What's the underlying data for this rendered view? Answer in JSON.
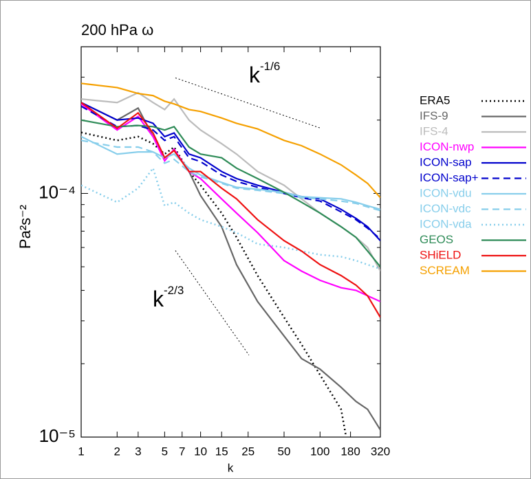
{
  "chart_data": {
    "type": "line",
    "title": "200 hPa ω",
    "xlabel": "k",
    "ylabel": "Pa²s⁻²",
    "xscale": "log",
    "yscale": "log",
    "xlim": [
      1,
      320
    ],
    "ylim": [
      1e-05,
      0.0004
    ],
    "xticks": [
      1,
      2,
      3,
      5,
      7,
      10,
      15,
      25,
      50,
      100,
      180,
      320
    ],
    "yticks": [
      {
        "value": 1e-05,
        "label": "10⁻⁵"
      },
      {
        "value": 0.0001,
        "label": "10⁻⁴"
      }
    ],
    "yminorticks": [
      2e-05,
      3e-05,
      4e-05,
      5e-05,
      6e-05,
      7e-05,
      8e-05,
      9e-05,
      0.0002,
      0.0003,
      0.0004
    ],
    "annotations": [
      {
        "text": "k",
        "sup": "-1/6",
        "x": [
          6.15,
          102
        ],
        "y": [
          0.000298,
          0.000185
        ]
      },
      {
        "text": "k",
        "sup": "-2/3",
        "x": [
          6.15,
          25.4
        ],
        "y": [
          5.83e-05,
          2.17e-05
        ]
      }
    ],
    "x": [
      1,
      2,
      3,
      4,
      5,
      6,
      8,
      10,
      15,
      20,
      30,
      50,
      70,
      100,
      150,
      200,
      250,
      320
    ],
    "series": [
      {
        "name": "ERA5",
        "color": "#000000",
        "dash": "dotted",
        "values": [
          0.000178,
          0.000165,
          0.000171,
          0.00016,
          0.000145,
          0.000155,
          0.000123,
          0.000108,
          8.3e-05,
          6.6e-05,
          4.6e-05,
          3.1e-05,
          2.4e-05,
          1.8e-05,
          1.3e-05,
          6e-06,
          null,
          null
        ]
      },
      {
        "name": "IFS-9",
        "color": "#666666",
        "dash": "solid",
        "values": [
          0.000236,
          0.0002,
          0.000224,
          0.000171,
          0.00014,
          0.00015,
          0.000123,
          9.8e-05,
          7.3e-05,
          5.1e-05,
          3.6e-05,
          2.6e-05,
          2.1e-05,
          1.9e-05,
          1.6e-05,
          1.4e-05,
          1.3e-05,
          1.07e-05
        ]
      },
      {
        "name": "IFS-4",
        "color": "#bbbbbb",
        "dash": "solid",
        "values": [
          0.000244,
          0.000236,
          0.000259,
          0.000236,
          0.000221,
          0.000244,
          0.0002,
          0.000182,
          0.00016,
          0.000145,
          0.000123,
          0.000108,
          9.5e-05,
          8.3e-05,
          7.3e-05,
          6.6e-05,
          6e-05,
          4.8e-05
        ]
      },
      {
        "name": "ICON-nwp",
        "color": "#ff00ff",
        "dash": "solid",
        "values": [
          0.000233,
          0.000182,
          0.000207,
          0.000171,
          0.000136,
          0.000152,
          0.000123,
          0.000115,
          9.5e-05,
          8.3e-05,
          6.9e-05,
          5.3e-05,
          4.8e-05,
          4.4e-05,
          4.1e-05,
          4e-05,
          3.8e-05,
          3.6e-05
        ]
      },
      {
        "name": "ICON-sap",
        "color": "#0000cc",
        "dash": "solid",
        "values": [
          0.000236,
          0.0002,
          0.000204,
          0.000194,
          0.000171,
          0.000177,
          0.000145,
          0.00014,
          0.000123,
          0.000115,
          0.000108,
          0.000101,
          9.7e-05,
          9.5e-05,
          8.6e-05,
          7.9e-05,
          7.3e-05,
          6.4e-05
        ]
      },
      {
        "name": "ICON-sap+",
        "color": "#0000cc",
        "dash": "dashed",
        "values": [
          0.000228,
          0.000188,
          0.00019,
          0.000182,
          0.000165,
          0.000171,
          0.00014,
          0.000135,
          0.000119,
          0.000112,
          0.000106,
          0.0001,
          9.6e-05,
          9.3e-05,
          8.4e-05,
          7.8e-05,
          7.2e-05,
          6.5e-05
        ]
      },
      {
        "name": "ICON-vdu",
        "color": "#87ceeb",
        "dash": "solid",
        "values": [
          0.000171,
          0.000145,
          0.000148,
          0.000148,
          0.00014,
          0.000145,
          0.000127,
          0.000119,
          0.000111,
          0.000106,
          0.000104,
          0.000101,
          9.7e-05,
          9.6e-05,
          9.5e-05,
          9.2e-05,
          8.9e-05,
          8.6e-05
        ]
      },
      {
        "name": "ICON-vdc",
        "color": "#87ceeb",
        "dash": "dashed",
        "values": [
          0.000165,
          0.000155,
          0.000155,
          0.000148,
          0.000133,
          0.000138,
          0.000123,
          0.000117,
          0.00011,
          0.000105,
          0.000103,
          0.0001,
          9.6e-05,
          9.5e-05,
          9.3e-05,
          9.1e-05,
          8.8e-05,
          8.5e-05
        ]
      },
      {
        "name": "ICON-vda",
        "color": "#87ceeb",
        "dash": "dotted",
        "values": [
          0.000108,
          9.2e-05,
          0.000105,
          0.000127,
          8.9e-05,
          9.2e-05,
          8.3e-05,
          7.8e-05,
          7.3e-05,
          6.9e-05,
          6.2e-05,
          6e-05,
          5.8e-05,
          5.6e-05,
          5.5e-05,
          5.3e-05,
          5.1e-05,
          4.9e-05
        ]
      },
      {
        "name": "GEOS",
        "color": "#2e8b57",
        "dash": "solid",
        "values": [
          0.0002,
          0.000188,
          0.00019,
          0.000188,
          0.000182,
          0.000188,
          0.000155,
          0.000145,
          0.00014,
          0.000127,
          0.000115,
          0.000101,
          9.2e-05,
          8.3e-05,
          7.3e-05,
          6.6e-05,
          5.8e-05,
          5e-05
        ]
      },
      {
        "name": "SHiELD",
        "color": "#ee1111",
        "dash": "solid",
        "values": [
          0.000236,
          0.000185,
          0.000214,
          0.000177,
          0.00014,
          0.00015,
          0.000123,
          0.000123,
          0.000105,
          9.5e-05,
          7.8e-05,
          6.4e-05,
          5.8e-05,
          5.1e-05,
          4.6e-05,
          4.2e-05,
          3.8e-05,
          3.1e-05
        ]
      },
      {
        "name": "SCREAM",
        "color": "#f5a000",
        "dash": "solid",
        "values": [
          0.000283,
          0.000272,
          0.000257,
          0.000252,
          0.000239,
          0.000233,
          0.000221,
          0.000217,
          0.000204,
          0.000194,
          0.000184,
          0.000165,
          0.000157,
          0.000145,
          0.000131,
          0.000119,
          0.00011,
          9.6e-05
        ]
      }
    ]
  }
}
